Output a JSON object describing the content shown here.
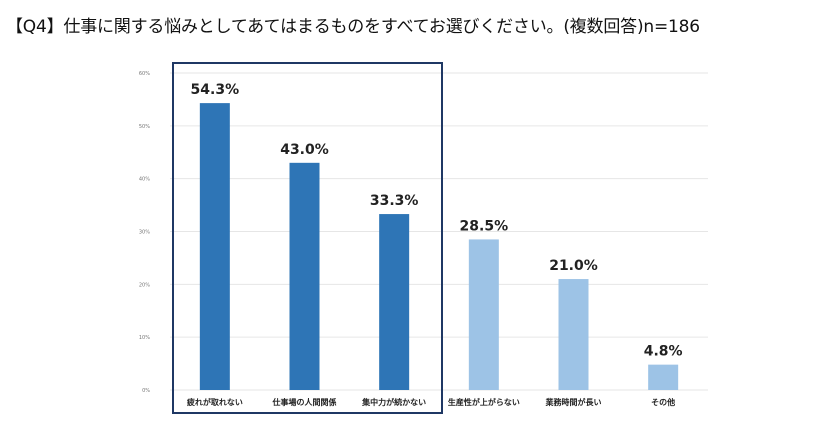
{
  "title": "【Q4】仕事に関する悩みとしてあてはまるものをすべてお選びください。(複数回答)n=186",
  "colors": {
    "highlight": "#2e75b6",
    "normal": "#9dc3e6",
    "frame": "#1f3864",
    "grid": "#e6e6e6"
  },
  "chart_data": {
    "type": "bar",
    "title": "",
    "xlabel": "",
    "ylabel": "",
    "ylim": [
      0,
      60
    ],
    "yticks": [
      "0%",
      "10%",
      "20%",
      "30%",
      "40%",
      "50%",
      "60%"
    ],
    "grid": true,
    "categories": [
      "疲れが取れない",
      "仕事場の人間関係",
      "集中力が続かない",
      "生産性が上がらない",
      "業務時間が長い",
      "その他"
    ],
    "values": [
      54.3,
      43.0,
      33.3,
      28.5,
      21.0,
      4.8
    ],
    "value_labels": [
      "54.3%",
      "43.0%",
      "33.3%",
      "28.5%",
      "21.0%",
      "4.8%"
    ],
    "highlighted": [
      true,
      true,
      true,
      false,
      false,
      false
    ]
  }
}
